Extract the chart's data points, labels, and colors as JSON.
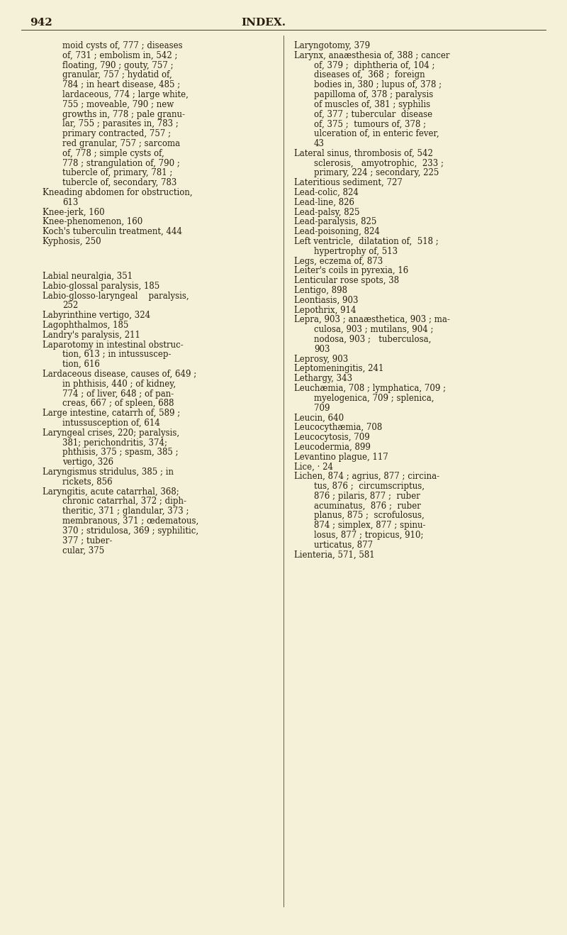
{
  "page_number": "942",
  "page_title": "INDEX.",
  "background_color": "#f5f0d8",
  "text_color": "#2a1f0e",
  "font_size": 8.5,
  "title_font_size": 11,
  "left_column": [
    "        moid cysts of, 777 ; diseases",
    "        of, 731 ; embolism in, 542 ;",
    "        floating, 790 ; gouty, 757 ;",
    "        granular, 757 ; hydatid of,",
    "        784 ; in heart disease, 485 ;",
    "        lardaceous, 774 ; large white,",
    "        755 ; moveable, 790 ; new",
    "        growths in, 778 ; pale granu-",
    "        lar, 755 ; parasites in, 783 ;",
    "        primary contracted, 757 ;",
    "        red granular, 757 ; sarcoma",
    "        of, 778 ; simple cysts of,",
    "        778 ; strangulation of, 790 ;",
    "        tubercle of, primary, 781 ;",
    "        tubercle of, secondary, 783",
    "Kneading abdomen for obstruction,",
    "        613",
    "Knee-jerk, 160",
    "Knee-phenomenon, 160",
    "Koch's tuberculin treatment, 444",
    "Kyphosis, 250",
    "",
    "",
    "",
    "Labial neuralgia, 351",
    "Labio-glossal paralysis, 185",
    "Labio-glosso-laryngeal    paralysis,",
    "        252",
    "Labyrinthine vertigo, 324",
    "Lagophthalmos, 185",
    "Landry's paralysis, 211",
    "Laparotomy in intestinal obstruc-",
    "        tion, 613 ; in intussuscep-",
    "        tion, 616",
    "Lardaceous disease, causes of, 649 ;",
    "        in phthisis, 440 ; of kidney,",
    "        774 ; of liver, 648 ; of pan-",
    "        creas, 667 ; of spleen, 688",
    "Large intestine, catarrh of, 589 ;",
    "        intussusception of, 614",
    "Laryngeal crises, 220; paralysis,",
    "        381; perichondritis, 374;",
    "        phthisis, 375 ; spasm, 385 ;",
    "        vertigo, 326",
    "Laryngismus stridulus, 385 ; in",
    "        rickets, 856",
    "Laryngitis, acute catarrhal, 368;",
    "        chronic catarrhal, 372 ; diph-",
    "        theritic, 371 ; glandular, 373 ;",
    "        membranous, 371 ; œdematous,",
    "        370 ; stridulosa, 369 ; syphilitic,",
    "        377 ; tuber-",
    "        cular, 375"
  ],
  "right_column": [
    "Laryngotomy, 379",
    "Larynx, anaæsthesia of, 388 ; cancer",
    "        of, 379 ;  diphtheria of, 104 ;",
    "        diseases of,  368 ;  foreign",
    "        bodies in, 380 ; lupus of, 378 ;",
    "        papilloma of, 378 ; paralysis",
    "        of muscles of, 381 ; syphilis",
    "        of, 377 ; tubercular  disease",
    "        of, 375 ;  tumours of, 378 ;",
    "        ulceration of, in enteric fever,",
    "        43",
    "Lateral sinus, thrombosis of, 542",
    "        sclerosis,   amyotrophic,  233 ;",
    "          primary, 224 ; secondary, 225",
    "Lateritious sediment, 727",
    "Lead-colic, 824",
    "Lead-line, 826",
    "Lead-palsy, 825",
    "Lead-paralysis, 825",
    "Lead-poisoning, 824",
    "Left ventricle,  dilatation of,  518 ;",
    "        hypertrophy of, 513",
    "Legs, eczema of, 873",
    "Leiter's coils in pyrexia, 16",
    "Lenticular rose spots, 38",
    "Lentigo, 898",
    "Leontiasis, 903",
    "Lepothrix, 914",
    "Lepra, 903 ; anaæsthetica, 903 ; ma-",
    "        culosa, 903 ; mutilans, 904 ;",
    "        nodosa, 903 ;   tuberculosa,",
    "        903",
    "Leprosy, 903",
    "Leptomeningitis, 241",
    "Lethargy, 343",
    "Leuchæmia, 708 ; lymphatica, 709 ;",
    "        myelogenica, 709 ; splenica,",
    "        709",
    "Leucin, 640",
    "Leucocythæmia, 708",
    "Leucocytosis, 709",
    "Leucodermia, 899",
    "Levantino plague, 117",
    "Lice, · 24",
    "Lichen, 874 ; agrius, 877 ; circina-",
    "        tus, 876 ;  circumscriptus,",
    "        876 ; pilaris, 877 ;  ruber",
    "        acuminatus,  876 ;  ruber",
    "        planus, 875 ;  scrofulosus,",
    "        874 ; simplex, 877 ; spinu-",
    "        losus, 877 ; tropicus, 910;",
    "        urticatus, 877",
    "Lienteria, 571, 581"
  ]
}
